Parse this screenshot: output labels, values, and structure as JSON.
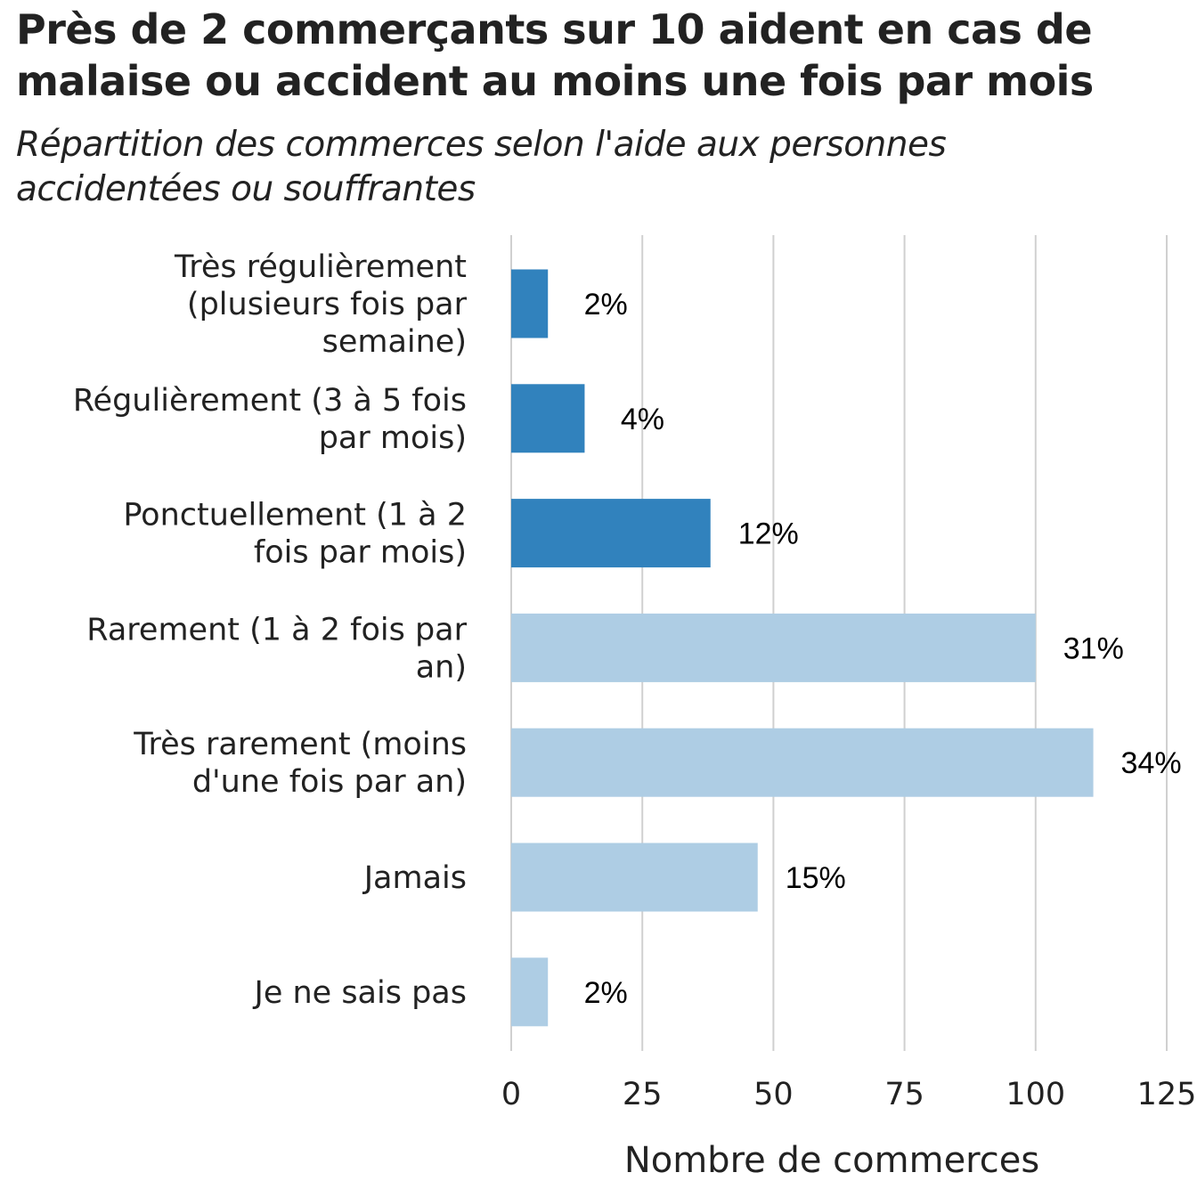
{
  "header": {
    "title": "Près de 2 commerçants sur 10 aident en cas de malaise ou accident au moins une fois par mois",
    "subtitle": "Répartition des commerces selon l'aide aux personnes accidentées ou souffrantes"
  },
  "chart_data": {
    "type": "bar",
    "orientation": "horizontal",
    "title": "Près de 2 commerçants sur 10 aident en cas de malaise ou accident au moins une fois par mois",
    "subtitle": "Répartition des commerces selon l'aide aux personnes accidentées ou souffrantes",
    "xlabel": "Nombre de commerces",
    "ylabel": "",
    "xlim": [
      0,
      125
    ],
    "xticks": [
      0,
      25,
      50,
      75,
      100,
      125
    ],
    "grid": "vertical",
    "legend": "none",
    "colors": {
      "dark": "#3182bd",
      "light": "#aecde4",
      "grid": "#d0d0d0"
    },
    "categories": [
      {
        "lines": [
          "Très régulièrement",
          "(plusieurs fois par",
          "semaine)"
        ],
        "value": 7,
        "label": "2%",
        "color": "dark"
      },
      {
        "lines": [
          "Régulièrement (3 à 5 fois",
          "par mois)"
        ],
        "value": 14,
        "label": "4%",
        "color": "dark"
      },
      {
        "lines": [
          "Ponctuellement (1 à 2",
          "fois par mois)"
        ],
        "value": 38,
        "label": "12%",
        "color": "dark"
      },
      {
        "lines": [
          "Rarement (1 à 2 fois par",
          "an)"
        ],
        "value": 100,
        "label": "31%",
        "color": "light"
      },
      {
        "lines": [
          "Très rarement (moins",
          "d'une fois par an)"
        ],
        "value": 111,
        "label": "34%",
        "color": "light"
      },
      {
        "lines": [
          "Jamais"
        ],
        "value": 47,
        "label": "15%",
        "color": "light"
      },
      {
        "lines": [
          "Je ne sais pas"
        ],
        "value": 7,
        "label": "2%",
        "color": "light"
      }
    ]
  }
}
